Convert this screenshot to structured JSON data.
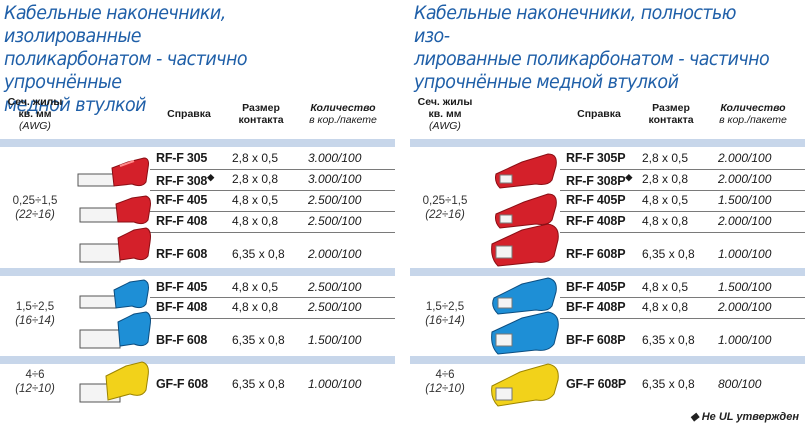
{
  "left": {
    "title": [
      "Кабельные наконечники, изолированные",
      "поликарбонатом - частично упрочнённые",
      "медной втулкой"
    ],
    "header": {
      "sec1": "Сеч. жилы",
      "sec2": "кв. мм",
      "sec3": "(AWG)",
      "ref": "Справка",
      "size1": "Размер",
      "size2": "контакта",
      "qty1": "Количество",
      "qty2": "в кор./пакете"
    },
    "groups": [
      {
        "sec": "0,25÷1,5",
        "awg": "(22÷16)",
        "rows": [
          {
            "ref": "RF-F 305",
            "size": "2,8 x 0,5",
            "qty": "3.000/100"
          },
          {
            "ref": "RF-F 308",
            "mark": "◆",
            "size": "2,8 x 0,8",
            "qty": "3.000/100"
          },
          {
            "ref": "RF-F 405",
            "size": "4,8 x 0,5",
            "qty": "2.500/100"
          },
          {
            "ref": "RF-F 408",
            "size": "4,8 x 0,8",
            "qty": "2.500/100"
          },
          {
            "ref": "RF-F 608",
            "size": "6,35 x 0,8",
            "qty": "2.000/100"
          }
        ]
      },
      {
        "sec": "1,5÷2,5",
        "awg": "(16÷14)",
        "rows": [
          {
            "ref": "BF-F 405",
            "size": "4,8 x 0,5",
            "qty": "2.500/100"
          },
          {
            "ref": "BF-F 408",
            "size": "4,8 x 0,8",
            "qty": "2.500/100"
          },
          {
            "ref": "BF-F 608",
            "size": "6,35 x 0,8",
            "qty": "1.500/100"
          }
        ]
      },
      {
        "sec": "4÷6",
        "awg": "(12÷10)",
        "rows": [
          {
            "ref": "GF-F 608",
            "size": "6,35 x 0,8",
            "qty": "1.000/100"
          }
        ]
      }
    ]
  },
  "right": {
    "title": [
      "Кабельные наконечники, полностью изо-",
      "лированные поликарбонатом - частично",
      "упрочнённые медной втулкой"
    ],
    "header": {
      "sec1": "Сеч. жилы",
      "sec2": "кв. мм",
      "sec3": "(AWG)",
      "ref": "Справка",
      "size1": "Размер",
      "size2": "контакта",
      "qty1": "Количество",
      "qty2": "в кор./пакете"
    },
    "groups": [
      {
        "sec": "0,25÷1,5",
        "awg": "(22÷16)",
        "rows": [
          {
            "ref": "RF-F 305P",
            "size": "2,8 x 0,5",
            "qty": "2.000/100"
          },
          {
            "ref": "RF-F 308P",
            "mark": "◆",
            "size": "2,8 x 0,8",
            "qty": "2.000/100"
          },
          {
            "ref": "RF-F 405P",
            "size": "4,8 x 0,5",
            "qty": "1.500/100"
          },
          {
            "ref": "RF-F 408P",
            "size": "4,8 x 0,8",
            "qty": "2.000/100"
          },
          {
            "ref": "RF-F 608P",
            "size": "6,35 x 0,8",
            "qty": "1.000/100"
          }
        ]
      },
      {
        "sec": "1,5÷2,5",
        "awg": "(16÷14)",
        "rows": [
          {
            "ref": "BF-F 405P",
            "size": "4,8 x 0,5",
            "qty": "1.500/100"
          },
          {
            "ref": "BF-F 408P",
            "size": "4,8 x 0,8",
            "qty": "2.000/100"
          },
          {
            "ref": "BF-F 608P",
            "size": "6,35 x 0,8",
            "qty": "1.000/100"
          }
        ]
      },
      {
        "sec": "4÷6",
        "awg": "(12÷10)",
        "rows": [
          {
            "ref": "GF-F 608P",
            "size": "6,35 x 0,8",
            "qty": "800/100"
          }
        ]
      }
    ]
  },
  "footnote": "◆ Не UL утвержден",
  "colors": {
    "title": "#1f5fa8",
    "band": "#c7d6ea",
    "red": "#d4202a",
    "blue": "#1e8fd6",
    "yellow": "#f2d21a"
  }
}
